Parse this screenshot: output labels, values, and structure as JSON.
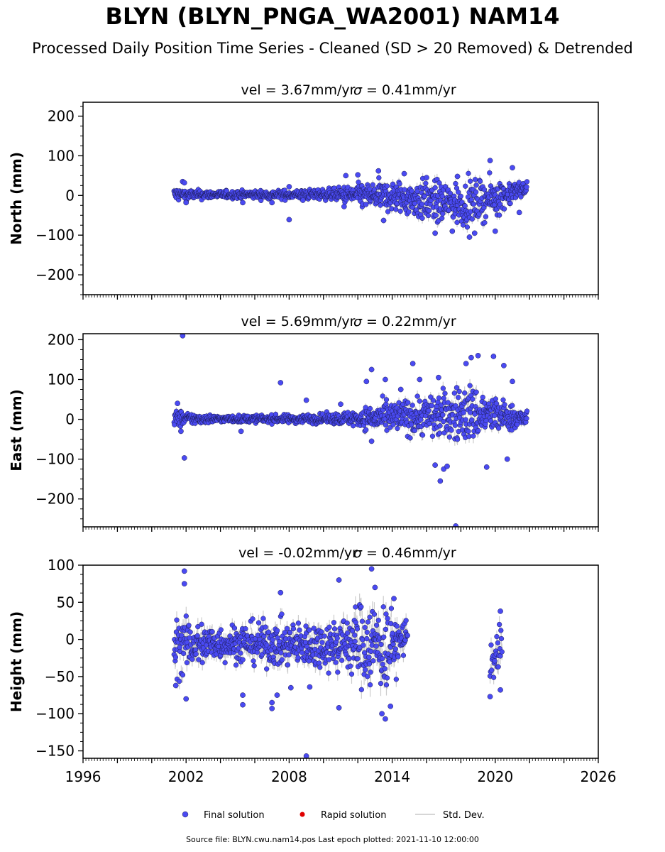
{
  "header": {
    "title": "BLYN (BLYN_PNGA_WA2001) NAM14",
    "subtitle": "Processed Daily Position Time Series - Cleaned (SD > 20 Removed) & Detrended"
  },
  "footer": {
    "source": "Source file: BLYN.cwu.nam14.pos  Last epoch plotted: 2021-11-10 12:00:00"
  },
  "legend": {
    "final": "Final solution",
    "rapid": "Rapid solution",
    "std": "Std. Dev."
  },
  "colors": {
    "final": "#4a4af2",
    "rapid": "#e00000",
    "std": "#c0c0c0"
  },
  "chart_data": [
    {
      "type": "scatter",
      "title_text": "vel = 3.67mm/yr",
      "sigma_text": "= 0.41mm/yr",
      "ylabel": "North (mm)",
      "xlim": [
        1996,
        2026
      ],
      "ylim": [
        -250,
        235
      ],
      "yticks": [
        -200,
        -100,
        0,
        100,
        200
      ],
      "envelope": [
        {
          "x": 2001.3,
          "lo": -18,
          "hi": 22
        },
        {
          "x": 2002.0,
          "lo": -12,
          "hi": 16
        },
        {
          "x": 2004.0,
          "lo": -8,
          "hi": 12
        },
        {
          "x": 2008.0,
          "lo": -10,
          "hi": 14
        },
        {
          "x": 2010.5,
          "lo": -12,
          "hi": 18
        },
        {
          "x": 2012.0,
          "lo": -30,
          "hi": 30
        },
        {
          "x": 2014.0,
          "lo": -45,
          "hi": 40
        },
        {
          "x": 2016.0,
          "lo": -70,
          "hi": 40
        },
        {
          "x": 2018.0,
          "lo": -80,
          "hi": 35
        },
        {
          "x": 2020.0,
          "lo": -55,
          "hi": 45
        },
        {
          "x": 2021.85,
          "lo": 5,
          "hi": 35
        }
      ],
      "outliers": [
        {
          "x": 2001.8,
          "y": 35
        },
        {
          "x": 2001.9,
          "y": 32
        },
        {
          "x": 2002.0,
          "y": -18
        },
        {
          "x": 2005.3,
          "y": -18
        },
        {
          "x": 2007.0,
          "y": -18
        },
        {
          "x": 2008.0,
          "y": -61
        },
        {
          "x": 2008.0,
          "y": 22
        },
        {
          "x": 2008.8,
          "y": -12
        },
        {
          "x": 2011.2,
          "y": -28
        },
        {
          "x": 2011.3,
          "y": 50
        },
        {
          "x": 2012.0,
          "y": 52
        },
        {
          "x": 2013.2,
          "y": 62
        },
        {
          "x": 2013.5,
          "y": -63
        },
        {
          "x": 2014.7,
          "y": 55
        },
        {
          "x": 2016.0,
          "y": 45
        },
        {
          "x": 2016.5,
          "y": -95
        },
        {
          "x": 2017.5,
          "y": -90
        },
        {
          "x": 2017.8,
          "y": 48
        },
        {
          "x": 2018.5,
          "y": -105
        },
        {
          "x": 2018.8,
          "y": -95
        },
        {
          "x": 2019.7,
          "y": 88
        },
        {
          "x": 2020.0,
          "y": -90
        },
        {
          "x": 2021.0,
          "y": 70
        },
        {
          "x": 2021.4,
          "y": -43
        }
      ]
    },
    {
      "type": "scatter",
      "title_text": "vel = 5.69mm/yr",
      "sigma_text": "= 0.22mm/yr",
      "ylabel": "East (mm)",
      "xlim": [
        1996,
        2026
      ],
      "ylim": [
        -270,
        215
      ],
      "yticks": [
        -200,
        -100,
        0,
        100,
        200
      ],
      "envelope": [
        {
          "x": 2001.3,
          "lo": -25,
          "hi": 30
        },
        {
          "x": 2002.0,
          "lo": -15,
          "hi": 18
        },
        {
          "x": 2004.0,
          "lo": -8,
          "hi": 10
        },
        {
          "x": 2008.0,
          "lo": -10,
          "hi": 12
        },
        {
          "x": 2010.5,
          "lo": -12,
          "hi": 15
        },
        {
          "x": 2012.0,
          "lo": -20,
          "hi": 25
        },
        {
          "x": 2013.0,
          "lo": -35,
          "hi": 40
        },
        {
          "x": 2015.0,
          "lo": -40,
          "hi": 55
        },
        {
          "x": 2017.0,
          "lo": -55,
          "hi": 75
        },
        {
          "x": 2018.5,
          "lo": -65,
          "hi": 95
        },
        {
          "x": 2020.0,
          "lo": -40,
          "hi": 60
        },
        {
          "x": 2021.85,
          "lo": -20,
          "hi": 20
        }
      ],
      "outliers": [
        {
          "x": 2001.8,
          "y": 210
        },
        {
          "x": 2001.9,
          "y": -97
        },
        {
          "x": 2001.5,
          "y": 40
        },
        {
          "x": 2001.7,
          "y": -30
        },
        {
          "x": 2007.5,
          "y": 92
        },
        {
          "x": 2009.0,
          "y": 48
        },
        {
          "x": 2005.2,
          "y": -30
        },
        {
          "x": 2011.0,
          "y": 38
        },
        {
          "x": 2012.5,
          "y": 95
        },
        {
          "x": 2012.8,
          "y": 125
        },
        {
          "x": 2012.8,
          "y": -55
        },
        {
          "x": 2013.6,
          "y": 100
        },
        {
          "x": 2014.5,
          "y": 75
        },
        {
          "x": 2015.2,
          "y": 140
        },
        {
          "x": 2015.6,
          "y": 100
        },
        {
          "x": 2016.7,
          "y": 105
        },
        {
          "x": 2016.5,
          "y": -115
        },
        {
          "x": 2016.8,
          "y": -155
        },
        {
          "x": 2017.0,
          "y": -125
        },
        {
          "x": 2017.2,
          "y": -118
        },
        {
          "x": 2017.7,
          "y": -268
        },
        {
          "x": 2018.3,
          "y": 140
        },
        {
          "x": 2018.6,
          "y": 155
        },
        {
          "x": 2019.0,
          "y": 160
        },
        {
          "x": 2019.5,
          "y": -120
        },
        {
          "x": 2019.9,
          "y": 158
        },
        {
          "x": 2020.5,
          "y": 135
        },
        {
          "x": 2020.7,
          "y": -100
        },
        {
          "x": 2021.0,
          "y": 95
        }
      ]
    },
    {
      "type": "scatter",
      "title_text": "vel = -0.02mm/yr",
      "sigma_text": "= 0.46mm/yr",
      "ylabel": "Height (mm)",
      "xlim": [
        1996,
        2026
      ],
      "ylim": [
        -160,
        100
      ],
      "yticks": [
        -150,
        -100,
        -50,
        0,
        50,
        100
      ],
      "xticks": [
        1996,
        2002,
        2008,
        2014,
        2020,
        2026
      ],
      "envelope": [
        {
          "x": 2001.3,
          "lo": -55,
          "hi": 40
        },
        {
          "x": 2002.0,
          "lo": -45,
          "hi": 30
        },
        {
          "x": 2004.0,
          "lo": -30,
          "hi": 20
        },
        {
          "x": 2006.0,
          "lo": -35,
          "hi": 25
        },
        {
          "x": 2008.0,
          "lo": -40,
          "hi": 25
        },
        {
          "x": 2010.0,
          "lo": -40,
          "hi": 25
        },
        {
          "x": 2011.5,
          "lo": -50,
          "hi": 40
        },
        {
          "x": 2012.5,
          "lo": -70,
          "hi": 60
        },
        {
          "x": 2013.5,
          "lo": -75,
          "hi": 55
        },
        {
          "x": 2014.4,
          "lo": -40,
          "hi": 30
        },
        {
          "x": 2014.9,
          "lo": -10,
          "hi": 30
        }
      ],
      "envelope2": [
        {
          "x": 2019.7,
          "lo": -70,
          "hi": 15
        },
        {
          "x": 2020.0,
          "lo": -55,
          "hi": 5
        },
        {
          "x": 2020.4,
          "lo": -65,
          "hi": 35
        }
      ],
      "outliers": [
        {
          "x": 2001.9,
          "y": 92
        },
        {
          "x": 2001.9,
          "y": 75
        },
        {
          "x": 2002.0,
          "y": -80
        },
        {
          "x": 2001.4,
          "y": -62
        },
        {
          "x": 2005.3,
          "y": -88
        },
        {
          "x": 2005.3,
          "y": -75
        },
        {
          "x": 2007.0,
          "y": -93
        },
        {
          "x": 2007.0,
          "y": -85
        },
        {
          "x": 2007.3,
          "y": -75
        },
        {
          "x": 2007.5,
          "y": 63
        },
        {
          "x": 2008.1,
          "y": -65
        },
        {
          "x": 2009.0,
          "y": -157
        },
        {
          "x": 2009.2,
          "y": -64
        },
        {
          "x": 2010.9,
          "y": 80
        },
        {
          "x": 2010.9,
          "y": -92
        },
        {
          "x": 2012.8,
          "y": 95
        },
        {
          "x": 2013.0,
          "y": 70
        },
        {
          "x": 2013.4,
          "y": -100
        },
        {
          "x": 2013.6,
          "y": -107
        },
        {
          "x": 2013.9,
          "y": -90
        },
        {
          "x": 2014.1,
          "y": 55
        },
        {
          "x": 2019.7,
          "y": -77
        },
        {
          "x": 2020.3,
          "y": 38
        },
        {
          "x": 2020.3,
          "y": -68
        }
      ]
    }
  ]
}
